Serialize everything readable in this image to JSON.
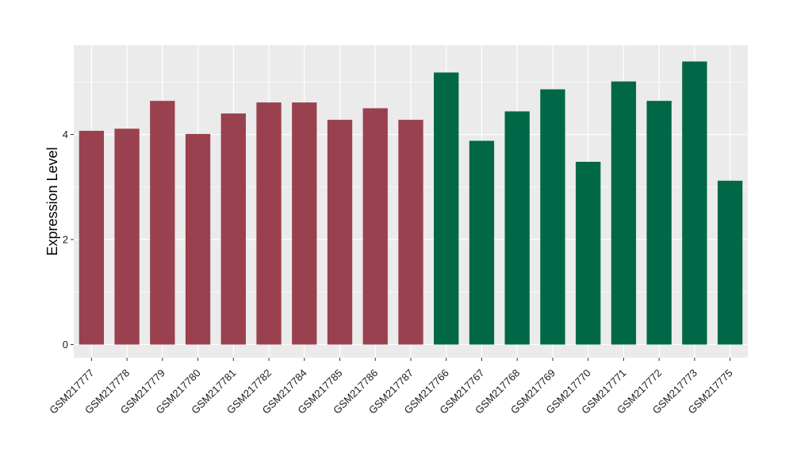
{
  "chart_data": {
    "type": "bar",
    "title": "",
    "xlabel": "",
    "ylabel": "Expression Level",
    "ylim": [
      -0.25,
      5.7
    ],
    "yticks": [
      0,
      2,
      4
    ],
    "grid": true,
    "panel_background": "#ebebeb",
    "categories": [
      "GSM217777",
      "GSM217778",
      "GSM217779",
      "GSM217780",
      "GSM217781",
      "GSM217782",
      "GSM217784",
      "GSM217785",
      "GSM217786",
      "GSM217787",
      "GSM217766",
      "GSM217767",
      "GSM217768",
      "GSM217769",
      "GSM217770",
      "GSM217771",
      "GSM217772",
      "GSM217773",
      "GSM217775"
    ],
    "values": [
      4.07,
      4.11,
      4.64,
      4.01,
      4.4,
      4.61,
      4.61,
      4.28,
      4.5,
      4.28,
      5.18,
      3.88,
      4.44,
      4.86,
      3.48,
      5.01,
      4.64,
      5.39,
      3.12
    ],
    "bar_colors": [
      "#9a414f",
      "#9a414f",
      "#9a414f",
      "#9a414f",
      "#9a414f",
      "#9a414f",
      "#9a414f",
      "#9a414f",
      "#9a414f",
      "#9a414f",
      "#006847",
      "#006847",
      "#006847",
      "#006847",
      "#006847",
      "#006847",
      "#006847",
      "#006847",
      "#006847"
    ]
  }
}
